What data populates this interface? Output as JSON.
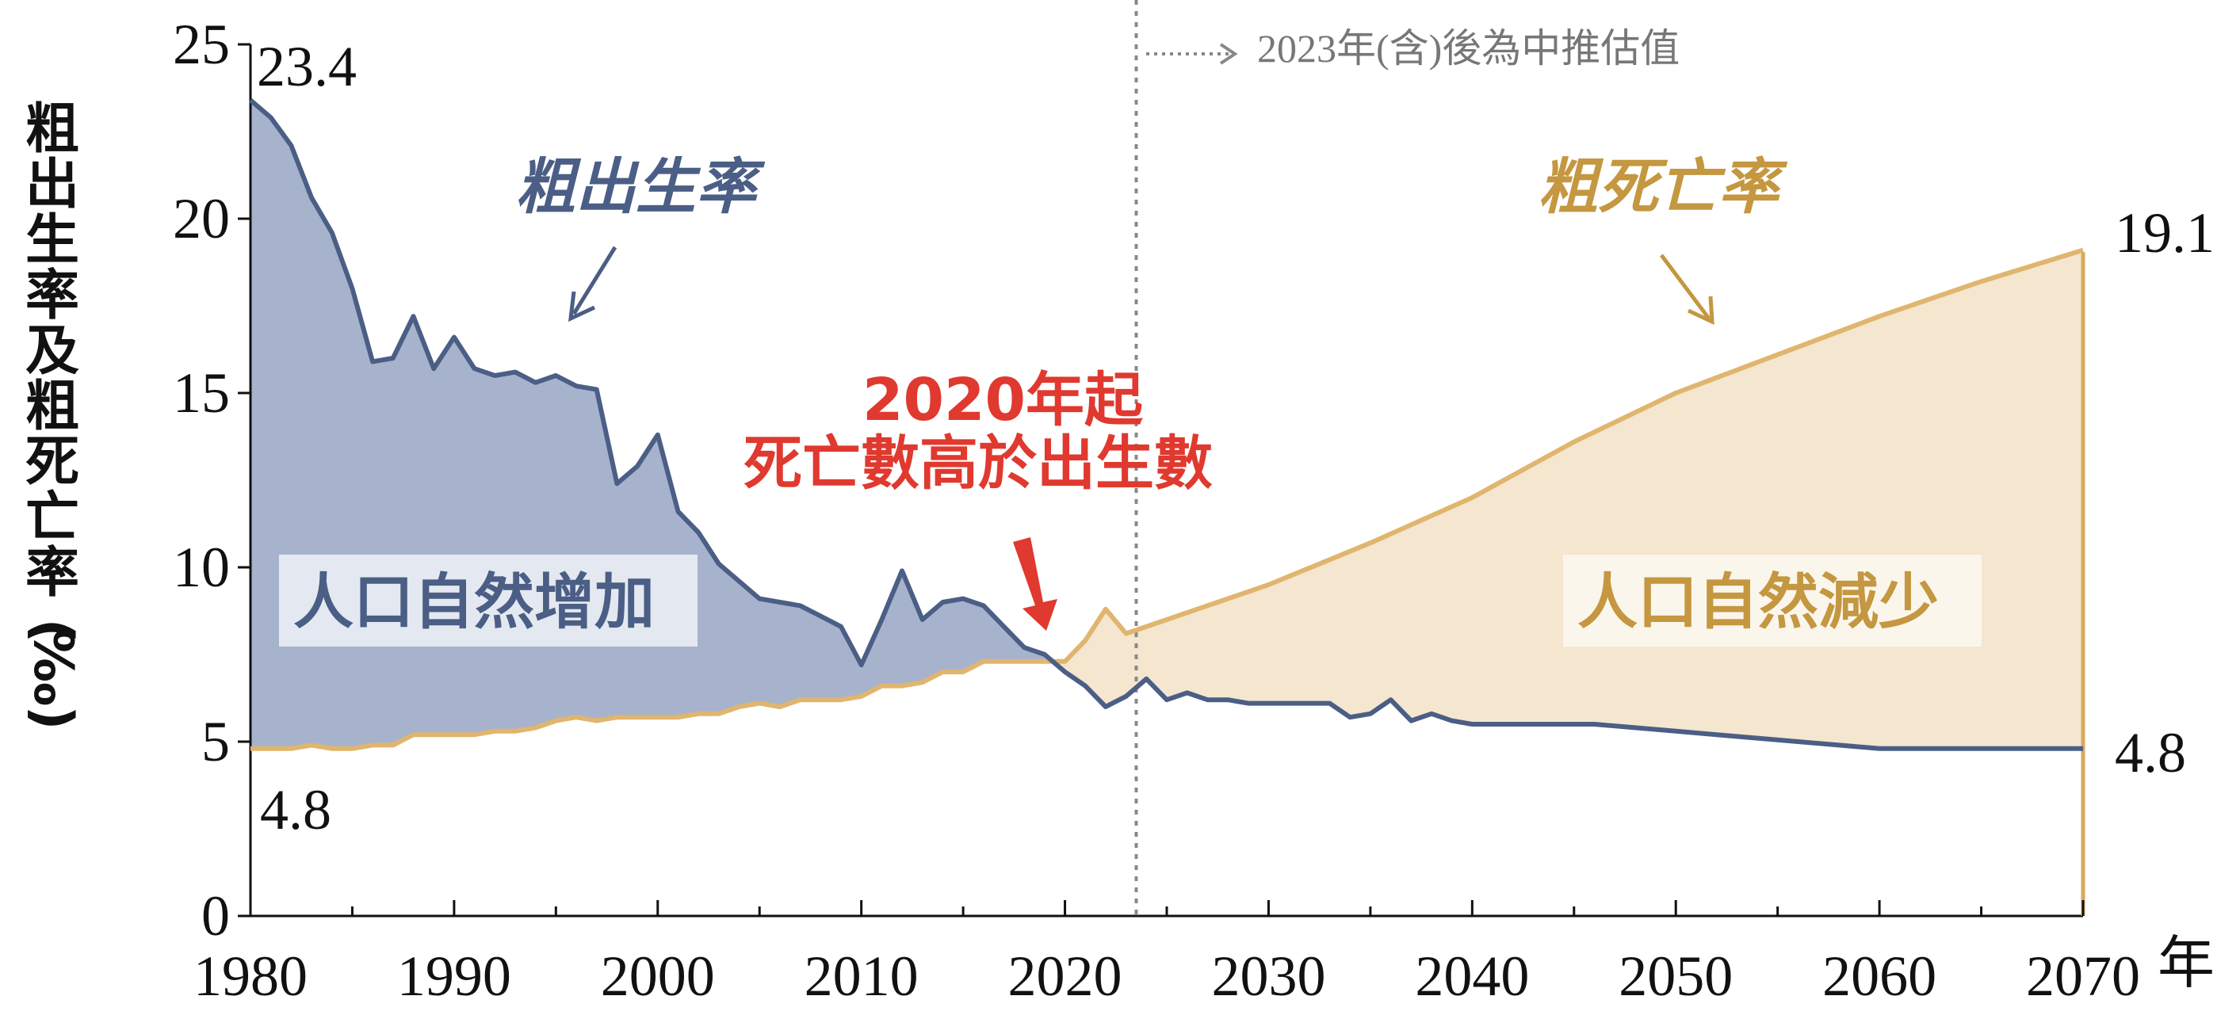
{
  "chart_data": {
    "type": "area",
    "ylabel": "粗出生率及粗死亡率(‰)",
    "xlabel": "年",
    "xlim": [
      1980,
      2070
    ],
    "ylim": [
      0,
      25
    ],
    "xticks": [
      1980,
      1990,
      2000,
      2010,
      2020,
      2030,
      2040,
      2050,
      2060,
      2070
    ],
    "yticks": [
      0,
      5,
      10,
      15,
      20,
      25
    ],
    "projection_start": 2023.5,
    "projection_note": "2023年(含)後為中推估值",
    "series": [
      {
        "name": "粗出生率",
        "color": "#4b5e85",
        "fill": "#a7b3cc",
        "x": [
          1980,
          1981,
          1982,
          1983,
          1984,
          1985,
          1986,
          1987,
          1988,
          1989,
          1990,
          1991,
          1992,
          1993,
          1994,
          1995,
          1996,
          1997,
          1998,
          1999,
          2000,
          2001,
          2002,
          2003,
          2004,
          2005,
          2006,
          2007,
          2008,
          2009,
          2010,
          2011,
          2012,
          2013,
          2014,
          2015,
          2016,
          2017,
          2018,
          2019,
          2020,
          2021,
          2022,
          2023,
          2024,
          2025,
          2026,
          2027,
          2028,
          2029,
          2030,
          2031,
          2032,
          2033,
          2034,
          2035,
          2036,
          2037,
          2038,
          2039,
          2040,
          2042,
          2044,
          2046,
          2048,
          2050,
          2052,
          2054,
          2056,
          2058,
          2060,
          2062,
          2064,
          2066,
          2068,
          2070
        ],
        "values": [
          23.4,
          22.9,
          22.1,
          20.6,
          19.6,
          18.0,
          15.9,
          16.0,
          17.2,
          15.7,
          16.6,
          15.7,
          15.5,
          15.6,
          15.3,
          15.5,
          15.2,
          15.1,
          12.4,
          12.9,
          13.8,
          11.6,
          11.0,
          10.1,
          9.6,
          9.1,
          9.0,
          8.9,
          8.6,
          8.3,
          7.2,
          8.5,
          9.9,
          8.5,
          9.0,
          9.1,
          8.9,
          8.3,
          7.7,
          7.5,
          7.0,
          6.6,
          6.0,
          6.3,
          6.8,
          6.2,
          6.4,
          6.2,
          6.2,
          6.1,
          6.1,
          6.1,
          6.1,
          6.1,
          5.7,
          5.8,
          6.2,
          5.6,
          5.8,
          5.6,
          5.5,
          5.5,
          5.5,
          5.5,
          5.4,
          5.3,
          5.2,
          5.1,
          5.0,
          4.9,
          4.8,
          4.8,
          4.8,
          4.8,
          4.8,
          4.8
        ]
      },
      {
        "name": "粗死亡率",
        "color": "#e0b56e",
        "fill": "#f4e6cf",
        "x": [
          1980,
          1981,
          1982,
          1983,
          1984,
          1985,
          1986,
          1987,
          1988,
          1989,
          1990,
          1991,
          1992,
          1993,
          1994,
          1995,
          1996,
          1997,
          1998,
          1999,
          2000,
          2001,
          2002,
          2003,
          2004,
          2005,
          2006,
          2007,
          2008,
          2009,
          2010,
          2011,
          2012,
          2013,
          2014,
          2015,
          2016,
          2017,
          2018,
          2019,
          2020,
          2021,
          2022,
          2023,
          2025,
          2030,
          2035,
          2040,
          2045,
          2050,
          2055,
          2060,
          2065,
          2070
        ],
        "values": [
          4.8,
          4.8,
          4.8,
          4.9,
          4.8,
          4.8,
          4.9,
          4.9,
          5.2,
          5.2,
          5.2,
          5.2,
          5.3,
          5.3,
          5.4,
          5.6,
          5.7,
          5.6,
          5.7,
          5.7,
          5.7,
          5.7,
          5.8,
          5.8,
          6.0,
          6.1,
          6.0,
          6.2,
          6.2,
          6.2,
          6.3,
          6.6,
          6.6,
          6.7,
          7.0,
          7.0,
          7.3,
          7.3,
          7.3,
          7.3,
          7.3,
          7.9,
          8.8,
          8.1,
          8.5,
          9.5,
          10.7,
          12.0,
          13.6,
          15.0,
          16.1,
          17.2,
          18.2,
          19.1
        ]
      }
    ],
    "data_labels": {
      "birth_start": "23.4",
      "death_start": "4.8",
      "death_end": "19.1",
      "birth_end": "4.8"
    },
    "annotations": {
      "crossover_line1": "2020年起",
      "crossover_line2": "死亡數高於出生數",
      "region_increase": "人口自然增加",
      "region_decrease": "人口自然減少"
    }
  }
}
